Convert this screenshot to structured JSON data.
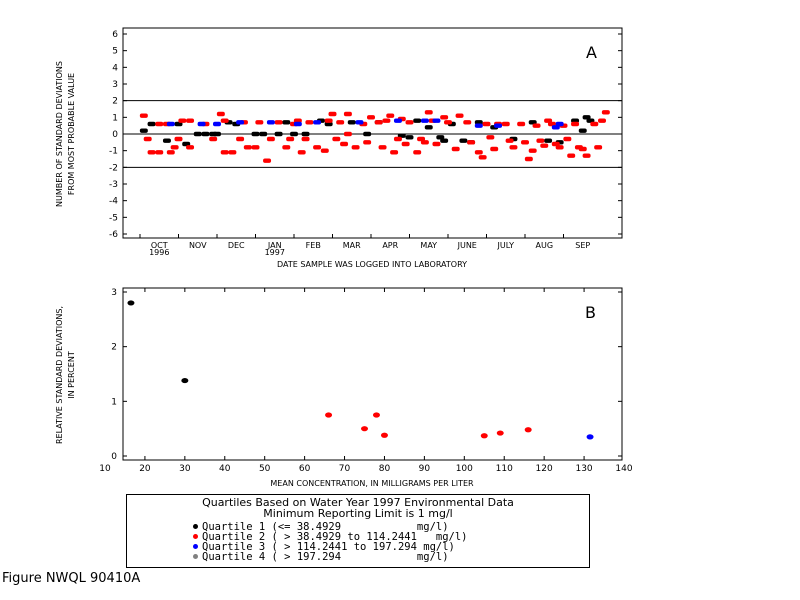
{
  "chart_data": [
    {
      "type": "scatter",
      "panel_label": "A",
      "ylabel": [
        "NUMBER OF STANDARD DEVIATIONS",
        "FROM MOST PROBABLE VALUE"
      ],
      "xlabel": "DATE SAMPLE WAS LOGGED INTO LABORATORY",
      "ylim": [
        -6,
        6
      ],
      "yticks": [
        "6",
        "5",
        "4",
        "3",
        "2",
        "1",
        "0",
        "-1",
        "-2",
        "-3",
        "-4",
        "-5",
        "-6"
      ],
      "reference_lines": [
        2,
        0,
        -2
      ],
      "xticks": [
        {
          "label": "OCT",
          "year": "1996"
        },
        {
          "label": "NOV"
        },
        {
          "label": "DEC"
        },
        {
          "label": "JAN",
          "year": "1997"
        },
        {
          "label": "FEB"
        },
        {
          "label": "MAR"
        },
        {
          "label": "APR"
        },
        {
          "label": "MAY"
        },
        {
          "label": "JUNE"
        },
        {
          "label": "JULY"
        },
        {
          "label": "AUG"
        },
        {
          "label": "SEP"
        }
      ],
      "series": [
        {
          "name": "Quartile 1",
          "color": "#000000",
          "points": [
            [
              0.1,
              0.2
            ],
            [
              0.3,
              0.6
            ],
            [
              0.7,
              -0.4
            ],
            [
              1.0,
              0.6
            ],
            [
              1.2,
              -0.6
            ],
            [
              1.5,
              0.0
            ],
            [
              1.7,
              0.0
            ],
            [
              1.9,
              0.0
            ],
            [
              2.0,
              0.0
            ],
            [
              2.3,
              0.7
            ],
            [
              2.5,
              0.6
            ],
            [
              3.0,
              0.0
            ],
            [
              3.2,
              0.0
            ],
            [
              3.6,
              0.0
            ],
            [
              3.8,
              0.7
            ],
            [
              4.0,
              0.0
            ],
            [
              4.3,
              0.0
            ],
            [
              4.7,
              0.8
            ],
            [
              4.9,
              0.6
            ],
            [
              5.5,
              0.7
            ],
            [
              5.9,
              0.0
            ],
            [
              6.2,
              0.7
            ],
            [
              6.8,
              -0.1
            ],
            [
              7.0,
              -0.2
            ],
            [
              7.2,
              0.8
            ],
            [
              7.5,
              0.4
            ],
            [
              7.8,
              -0.2
            ],
            [
              7.9,
              -0.4
            ],
            [
              8.1,
              0.6
            ],
            [
              8.4,
              -0.4
            ],
            [
              8.6,
              -0.5
            ],
            [
              8.8,
              0.7
            ],
            [
              9.2,
              0.4
            ],
            [
              9.7,
              -0.3
            ],
            [
              10.2,
              0.7
            ],
            [
              10.6,
              -0.4
            ],
            [
              10.9,
              -0.5
            ],
            [
              11.3,
              0.8
            ],
            [
              11.5,
              0.2
            ],
            [
              11.6,
              1.0
            ],
            [
              11.7,
              0.8
            ]
          ]
        },
        {
          "name": "Quartile 2",
          "color": "#ff0000",
          "points": [
            [
              0.1,
              1.1
            ],
            [
              0.2,
              -0.3
            ],
            [
              0.3,
              -1.1
            ],
            [
              0.5,
              -1.1
            ],
            [
              0.5,
              0.6
            ],
            [
              0.7,
              0.6
            ],
            [
              0.8,
              -1.1
            ],
            [
              0.9,
              -0.8
            ],
            [
              1.0,
              -0.3
            ],
            [
              1.1,
              0.8
            ],
            [
              1.3,
              0.8
            ],
            [
              1.3,
              -0.8
            ],
            [
              1.7,
              0.6
            ],
            [
              1.9,
              -0.3
            ],
            [
              2.1,
              1.2
            ],
            [
              2.2,
              0.8
            ],
            [
              2.2,
              -1.1
            ],
            [
              2.4,
              -1.1
            ],
            [
              2.6,
              -0.3
            ],
            [
              2.7,
              0.7
            ],
            [
              2.8,
              -0.8
            ],
            [
              3.0,
              -0.8
            ],
            [
              3.1,
              0.7
            ],
            [
              3.3,
              -1.6
            ],
            [
              3.4,
              -0.3
            ],
            [
              3.6,
              0.7
            ],
            [
              3.8,
              -0.8
            ],
            [
              3.9,
              -0.3
            ],
            [
              4.0,
              0.6
            ],
            [
              4.1,
              0.8
            ],
            [
              4.2,
              -1.1
            ],
            [
              4.3,
              -0.3
            ],
            [
              4.4,
              0.7
            ],
            [
              4.6,
              -0.8
            ],
            [
              4.8,
              -1.0
            ],
            [
              4.9,
              0.8
            ],
            [
              5.0,
              1.2
            ],
            [
              5.1,
              -0.3
            ],
            [
              5.2,
              0.7
            ],
            [
              5.3,
              -0.6
            ],
            [
              5.4,
              1.2
            ],
            [
              5.4,
              0.0
            ],
            [
              5.6,
              -0.8
            ],
            [
              5.8,
              0.6
            ],
            [
              5.9,
              -0.5
            ],
            [
              6.0,
              1.0
            ],
            [
              6.2,
              0.7
            ],
            [
              6.3,
              -0.8
            ],
            [
              6.4,
              0.8
            ],
            [
              6.5,
              1.1
            ],
            [
              6.6,
              -1.1
            ],
            [
              6.7,
              -0.3
            ],
            [
              6.8,
              0.9
            ],
            [
              6.9,
              -0.6
            ],
            [
              7.0,
              0.7
            ],
            [
              7.2,
              -1.1
            ],
            [
              7.3,
              -0.3
            ],
            [
              7.4,
              -0.5
            ],
            [
              7.5,
              1.3
            ],
            [
              7.6,
              0.8
            ],
            [
              7.7,
              -0.6
            ],
            [
              7.9,
              1.0
            ],
            [
              8.0,
              0.7
            ],
            [
              8.2,
              -0.9
            ],
            [
              8.3,
              1.1
            ],
            [
              8.5,
              0.7
            ],
            [
              8.6,
              -0.5
            ],
            [
              8.8,
              -1.1
            ],
            [
              8.9,
              -1.4
            ],
            [
              9.0,
              0.6
            ],
            [
              9.1,
              -0.2
            ],
            [
              9.2,
              -0.9
            ],
            [
              9.3,
              0.6
            ],
            [
              9.5,
              0.6
            ],
            [
              9.6,
              -0.4
            ],
            [
              9.7,
              -0.8
            ],
            [
              9.9,
              0.6
            ],
            [
              10.0,
              -0.5
            ],
            [
              10.1,
              -1.5
            ],
            [
              10.2,
              -1.0
            ],
            [
              10.3,
              0.5
            ],
            [
              10.4,
              -0.4
            ],
            [
              10.5,
              -0.7
            ],
            [
              10.6,
              0.8
            ],
            [
              10.7,
              0.6
            ],
            [
              10.8,
              -0.6
            ],
            [
              10.9,
              -0.8
            ],
            [
              11.0,
              0.5
            ],
            [
              11.1,
              -0.3
            ],
            [
              11.2,
              -1.3
            ],
            [
              11.3,
              0.6
            ],
            [
              11.4,
              -0.8
            ],
            [
              11.5,
              -0.9
            ],
            [
              11.6,
              -1.3
            ],
            [
              11.8,
              0.6
            ],
            [
              11.9,
              -0.8
            ],
            [
              12.0,
              0.8
            ],
            [
              12.1,
              1.3
            ]
          ]
        },
        {
          "name": "Quartile 3",
          "color": "#0000ff",
          "points": [
            [
              0.8,
              0.6
            ],
            [
              1.6,
              0.6
            ],
            [
              2.0,
              0.6
            ],
            [
              2.6,
              0.7
            ],
            [
              3.4,
              0.7
            ],
            [
              4.1,
              0.6
            ],
            [
              4.6,
              0.7
            ],
            [
              5.7,
              0.7
            ],
            [
              6.7,
              0.8
            ],
            [
              7.4,
              0.8
            ],
            [
              7.7,
              0.8
            ],
            [
              8.8,
              0.5
            ],
            [
              9.3,
              0.5
            ],
            [
              10.8,
              0.4
            ],
            [
              10.9,
              0.6
            ]
          ]
        },
        {
          "name": "Quartile 4",
          "color": "#808080",
          "points": []
        }
      ]
    },
    {
      "type": "scatter",
      "panel_label": "B",
      "ylabel": [
        "RELATIVE STANDARD DEVIATIONS,",
        "IN PERCENT"
      ],
      "xlabel": "MEAN CONCENTRATION, IN MILLIGRAMS PER LITER",
      "xlim": [
        10,
        140
      ],
      "ylim": [
        0,
        3
      ],
      "xticks": [
        "10",
        "20",
        "30",
        "40",
        "50",
        "60",
        "70",
        "80",
        "90",
        "100",
        "110",
        "120",
        "130",
        "140"
      ],
      "yticks": [
        "0",
        "1",
        "2",
        "3"
      ],
      "series": [
        {
          "name": "Quartile 1",
          "color": "#000000",
          "points": [
            [
              16.5,
              2.8
            ],
            [
              30,
              1.38
            ]
          ]
        },
        {
          "name": "Quartile 2",
          "color": "#ff0000",
          "points": [
            [
              66,
              0.75
            ],
            [
              75,
              0.5
            ],
            [
              78,
              0.75
            ],
            [
              80,
              0.38
            ],
            [
              105,
              0.37
            ],
            [
              109,
              0.42
            ],
            [
              116,
              0.48
            ]
          ]
        },
        {
          "name": "Quartile 3",
          "color": "#0000ff",
          "points": [
            [
              131.5,
              0.35
            ]
          ]
        },
        {
          "name": "Quartile 4",
          "color": "#808080",
          "points": []
        }
      ]
    }
  ],
  "legend": {
    "title_line1": "Quartiles Based on Water Year 1997 Environmental Data",
    "title_line2": "Minimum Reporting Limit is 1 mg/l",
    "entries": [
      {
        "text": "Quartile 1 (<= 38.4929            mg/l)",
        "color": "#000000"
      },
      {
        "text": "Quartile 2 ( > 38.4929 to 114.2441   mg/l)",
        "color": "#ff0000"
      },
      {
        "text": "Quartile 3 ( > 114.2441 to 197.294 mg/l)",
        "color": "#0000ff"
      },
      {
        "text": "Quartile 4 ( > 197.294            mg/l)",
        "color": "#808080"
      }
    ]
  },
  "figure_id": "Figure NWQL 90410A"
}
